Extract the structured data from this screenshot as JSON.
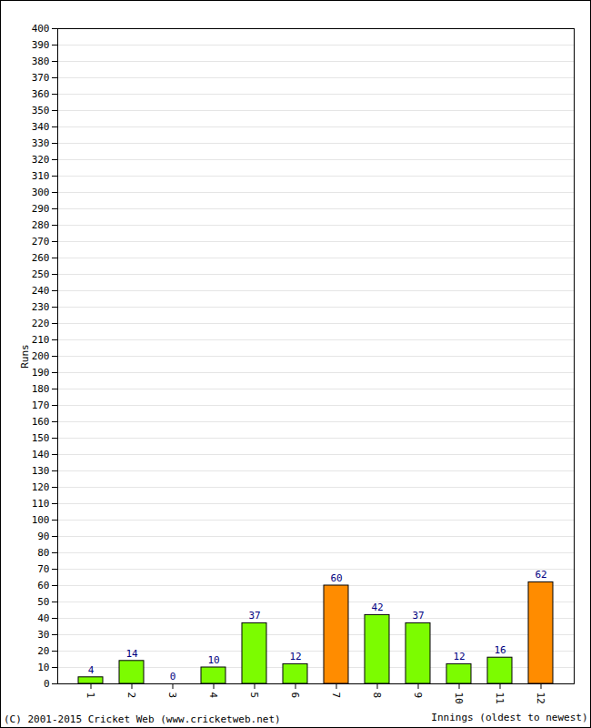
{
  "chart_data": {
    "type": "bar",
    "caption": "(C) 2001-2015 Cricket Web (www.cricketweb.net)",
    "x_label": "Innings (oldest to newest)",
    "y_label": "Runs",
    "categories": [
      "1",
      "2",
      "3",
      "4",
      "5",
      "6",
      "7",
      "8",
      "9",
      "10",
      "11",
      "12"
    ],
    "values": [
      4,
      14,
      0,
      10,
      37,
      12,
      60,
      42,
      37,
      12,
      16,
      62
    ],
    "colors": [
      "#7cfc00",
      "#7cfc00",
      "#7cfc00",
      "#7cfc00",
      "#7cfc00",
      "#7cfc00",
      "#ff8c00",
      "#7cfc00",
      "#7cfc00",
      "#7cfc00",
      "#7cfc00",
      "#ff8c00"
    ],
    "ylim": [
      0,
      400
    ],
    "yticks": [
      0,
      10,
      20,
      30,
      40,
      50,
      60,
      70,
      80,
      90,
      100,
      110,
      120,
      130,
      140,
      150,
      160,
      170,
      180,
      190,
      200,
      210,
      220,
      230,
      240,
      250,
      260,
      270,
      280,
      290,
      300,
      310,
      320,
      330,
      340,
      350,
      360,
      370,
      380,
      390,
      400
    ],
    "grid": true,
    "data_labels": true
  }
}
